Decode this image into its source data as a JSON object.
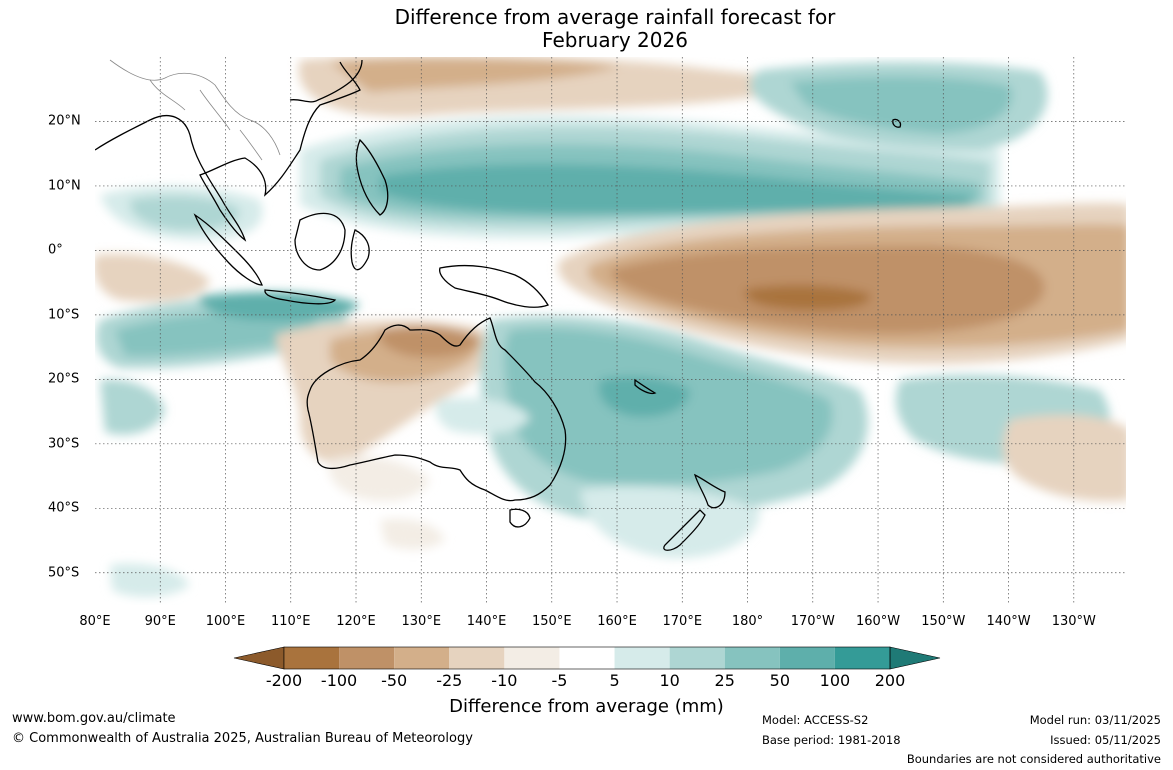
{
  "title": {
    "line1": "Difference from average rainfall forecast for",
    "line2": "February 2026"
  },
  "map": {
    "projection": "equirectangular",
    "extent": {
      "lon_min": 80,
      "lon_max": 238,
      "lat_min": -55,
      "lat_max": 30
    },
    "lon_ticks": [
      {
        "lon": 80,
        "label": "80°E"
      },
      {
        "lon": 90,
        "label": "90°E"
      },
      {
        "lon": 100,
        "label": "100°E"
      },
      {
        "lon": 110,
        "label": "110°E"
      },
      {
        "lon": 120,
        "label": "120°E"
      },
      {
        "lon": 130,
        "label": "130°E"
      },
      {
        "lon": 140,
        "label": "140°E"
      },
      {
        "lon": 150,
        "label": "150°E"
      },
      {
        "lon": 160,
        "label": "160°E"
      },
      {
        "lon": 170,
        "label": "170°E"
      },
      {
        "lon": 180,
        "label": "180°"
      },
      {
        "lon": 190,
        "label": "170°W"
      },
      {
        "lon": 200,
        "label": "160°W"
      },
      {
        "lon": 210,
        "label": "150°W"
      },
      {
        "lon": 220,
        "label": "140°W"
      },
      {
        "lon": 230,
        "label": "130°W"
      }
    ],
    "lat_ticks": [
      {
        "lat": 20,
        "label": "20°N"
      },
      {
        "lat": 10,
        "label": "10°N"
      },
      {
        "lat": 0,
        "label": "0°"
      },
      {
        "lat": -10,
        "label": "10°S"
      },
      {
        "lat": -20,
        "label": "20°S"
      },
      {
        "lat": -30,
        "label": "30°S"
      },
      {
        "lat": -40,
        "label": "40°S"
      },
      {
        "lat": -50,
        "label": "50°S"
      }
    ],
    "gridlines": true
  },
  "colorbar": {
    "title": "Difference from average (mm)",
    "labels": [
      "-200",
      "-100",
      "-50",
      "-25",
      "-10",
      "-5",
      "5",
      "10",
      "25",
      "50",
      "100",
      "200"
    ],
    "colors": [
      "#8c5a2b",
      "#a9733d",
      "#bf9167",
      "#d3af8a",
      "#e6d3bf",
      "#f3ede5",
      "#ffffff",
      "#d6ebea",
      "#aed6d3",
      "#86c3bf",
      "#5eafab",
      "#349b97",
      "#1f7a76"
    ],
    "extend": "both"
  },
  "footer": {
    "website": "www.bom.gov.au/climate",
    "copyright": "© Commonwealth of Australia 2025, Australian Bureau of Meteorology",
    "model": "Model: ACCESS-S2",
    "base_period": "Base period: 1981-2018",
    "model_run": "Model run: 03/11/2025",
    "issued": "Issued: 05/11/2025",
    "disclaimer": "Boundaries are not considered authoritative"
  }
}
